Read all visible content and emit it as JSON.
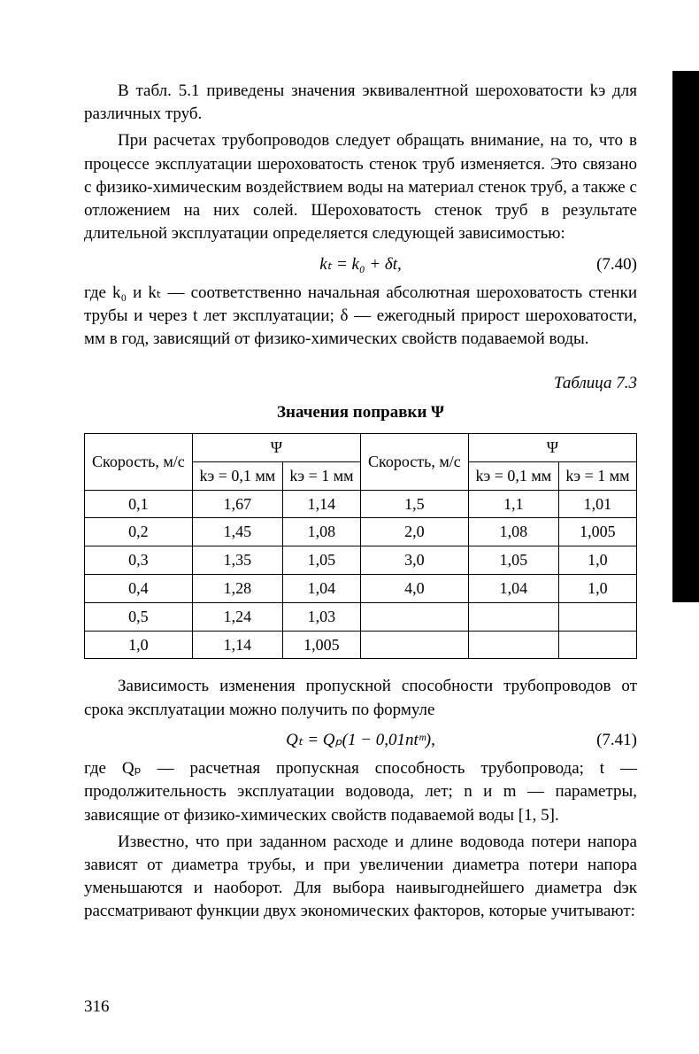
{
  "p1": "В табл. 5.1 приведены значения эквивалентной шероховатости kэ для различных труб.",
  "p2": "При расчетах трубопроводов следует обращать внимание, на то, что в процессе эксплуатации шероховатость стенок труб изменяется. Это связано с физико-химическим воздействием воды на материал стенок труб, а также с отложением на них солей. Шероховатость стенок труб в результате длительной эксплуатации определяется следующей зависимостью:",
  "eq1": "kₜ = k₀ + δt,",
  "eq1num": "(7.40)",
  "p3": "где k₀ и kₜ — соответственно начальная абсолютная шероховатость стенки трубы и через t лет эксплуатации; δ — ежегодный прирост шероховатости, мм в год, зависящий от физико-химических свойств подаваемой воды.",
  "tlabel": "Таблица 7.3",
  "ttitle": "Значения поправки Ψ",
  "table": {
    "h_speed": "Скорость, м/с",
    "h_psi": "Ψ",
    "h_k01": "kэ = 0,1 мм",
    "h_k1": "kэ = 1 мм",
    "rows": [
      [
        "0,1",
        "1,67",
        "1,14",
        "1,5",
        "1,1",
        "1,01"
      ],
      [
        "0,2",
        "1,45",
        "1,08",
        "2,0",
        "1,08",
        "1,005"
      ],
      [
        "0,3",
        "1,35",
        "1,05",
        "3,0",
        "1,05",
        "1,0"
      ],
      [
        "0,4",
        "1,28",
        "1,04",
        "4,0",
        "1,04",
        "1,0"
      ],
      [
        "0,5",
        "1,24",
        "1,03",
        "",
        "",
        ""
      ],
      [
        "1,0",
        "1,14",
        "1,005",
        "",
        "",
        ""
      ]
    ]
  },
  "p4": "Зависимость изменения пропускной способности трубопроводов от срока эксплуатации можно получить по формуле",
  "eq2": "Qₜ = Qₚ(1 − 0,01ntᵐ),",
  "eq2num": "(7.41)",
  "p5": "где Qₚ — расчетная пропускная способность трубопровода; t — продолжительность эксплуатации водовода, лет; n и m — параметры, зависящие от физико-химических свойств подаваемой воды [1, 5].",
  "p6": "Известно, что при заданном расходе и длине водовода потери напора зависят от диаметра трубы, и при увеличении диаметра потери напора уменьшаются и наоборот. Для выбора наивыгоднейшего диаметра dэк рассматривают функции двух экономических факторов, которые учитывают:",
  "pageNum": "316"
}
